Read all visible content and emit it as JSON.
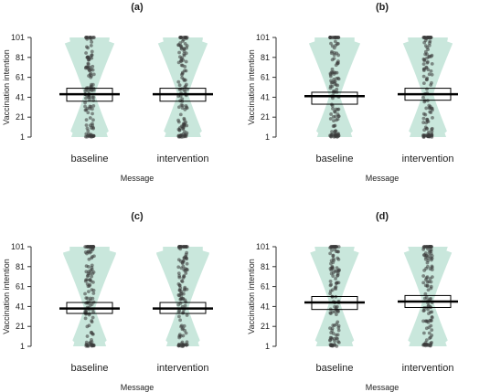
{
  "chart_data": [
    {
      "type": "box",
      "title": "(a)",
      "xlabel": "Message",
      "ylabel": "Vaccination intention",
      "categories": [
        "baseline",
        "intervention"
      ],
      "yticks": [
        1,
        21,
        41,
        61,
        81,
        101
      ],
      "ylim": [
        1,
        101
      ],
      "series": [
        {
          "category": "baseline",
          "q1": 37,
          "median": 44,
          "q3": 50
        },
        {
          "category": "intervention",
          "q1": 37,
          "median": 44,
          "q3": 50
        }
      ]
    },
    {
      "type": "box",
      "title": "(b)",
      "xlabel": "Message",
      "ylabel": "Vaccination intention",
      "categories": [
        "baseline",
        "intervention"
      ],
      "yticks": [
        1,
        21,
        41,
        61,
        81,
        101
      ],
      "ylim": [
        1,
        101
      ],
      "series": [
        {
          "category": "baseline",
          "q1": 34,
          "median": 42,
          "q3": 46
        },
        {
          "category": "intervention",
          "q1": 38,
          "median": 44,
          "q3": 50
        }
      ]
    },
    {
      "type": "box",
      "title": "(c)",
      "xlabel": "Message",
      "ylabel": "Vaccination intention",
      "categories": [
        "baseline",
        "intervention"
      ],
      "yticks": [
        1,
        21,
        41,
        61,
        81,
        101
      ],
      "ylim": [
        1,
        101
      ],
      "series": [
        {
          "category": "baseline",
          "q1": 34,
          "median": 39,
          "q3": 45
        },
        {
          "category": "intervention",
          "q1": 34,
          "median": 39,
          "q3": 45
        }
      ]
    },
    {
      "type": "box",
      "title": "(d)",
      "xlabel": "Message",
      "ylabel": "Vaccination intention",
      "categories": [
        "baseline",
        "intervention"
      ],
      "yticks": [
        1,
        21,
        41,
        61,
        81,
        101
      ],
      "ylim": [
        1,
        101
      ],
      "series": [
        {
          "category": "baseline",
          "q1": 38,
          "median": 45,
          "q3": 51
        },
        {
          "category": "intervention",
          "q1": 40,
          "median": 46,
          "q3": 52
        }
      ]
    }
  ],
  "colors": {
    "violin": "#c9e7dc",
    "point": "#3a3a3a",
    "box": "#000000"
  }
}
